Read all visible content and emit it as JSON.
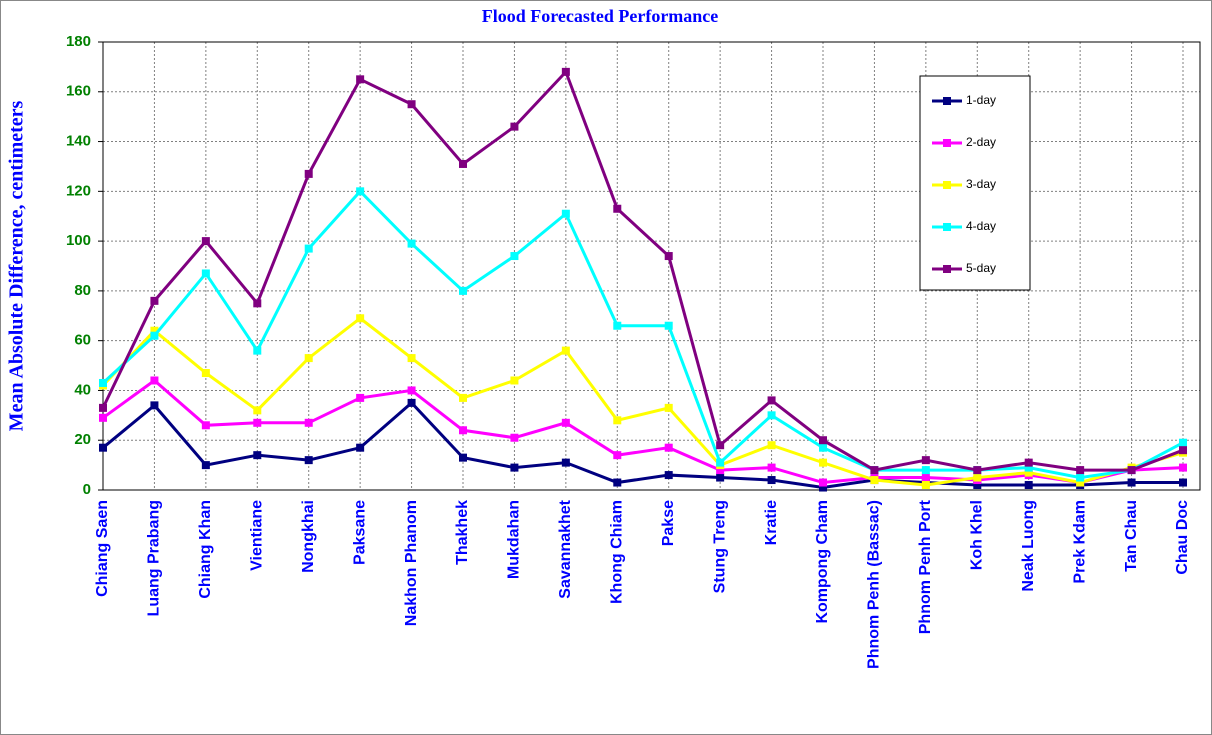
{
  "chart_data": {
    "type": "line",
    "title": "Flood Forecasted Performance",
    "y_label": "Mean Absolute Difference, centimeters",
    "categories": [
      "Chiang Saen",
      "Luang Prabang",
      "Chiang Khan",
      "Vientiane",
      "Nongkhai",
      "Paksane",
      "Nakhon Phanom",
      "Thakhek",
      "Mukdahan",
      "Savannakhet",
      "Khong Chiam",
      "Pakse",
      "Stung Treng",
      "Kratie",
      "Kompong Cham",
      "Phnom Penh (Bassac)",
      "Phnom Penh Port",
      "Koh Khel",
      "Neak Luong",
      "Prek Kdam",
      "Tan Chau",
      "Chau Doc"
    ],
    "series": [
      {
        "name": "1-day",
        "color": "#000080",
        "values": [
          17,
          34,
          10,
          14,
          12,
          17,
          35,
          13,
          9,
          11,
          3,
          6,
          5,
          4,
          1,
          4,
          3,
          2,
          2,
          2,
          3,
          3
        ]
      },
      {
        "name": "2-day",
        "color": "#ff00ff",
        "values": [
          29,
          44,
          26,
          27,
          27,
          37,
          40,
          24,
          21,
          27,
          14,
          17,
          8,
          9,
          3,
          5,
          5,
          4,
          6,
          3,
          8,
          9
        ]
      },
      {
        "name": "3-day",
        "color": "#ffff00",
        "values": [
          42,
          64,
          47,
          32,
          53,
          69,
          53,
          37,
          44,
          56,
          28,
          33,
          10,
          18,
          11,
          4,
          2,
          5,
          7,
          3,
          9,
          15
        ]
      },
      {
        "name": "4-day",
        "color": "#00ffff",
        "values": [
          43,
          62,
          87,
          56,
          97,
          120,
          99,
          80,
          94,
          111,
          66,
          66,
          11,
          30,
          17,
          8,
          8,
          8,
          9,
          5,
          8,
          19
        ]
      },
      {
        "name": "5-day",
        "color": "#800080",
        "values": [
          33,
          76,
          100,
          75,
          127,
          165,
          155,
          131,
          146,
          168,
          113,
          94,
          18,
          36,
          20,
          8,
          12,
          8,
          11,
          8,
          8,
          16
        ]
      }
    ],
    "ylim": [
      0,
      180
    ],
    "yticks": [
      0,
      20,
      40,
      60,
      80,
      100,
      120,
      140,
      160,
      180
    ],
    "grid": true
  }
}
